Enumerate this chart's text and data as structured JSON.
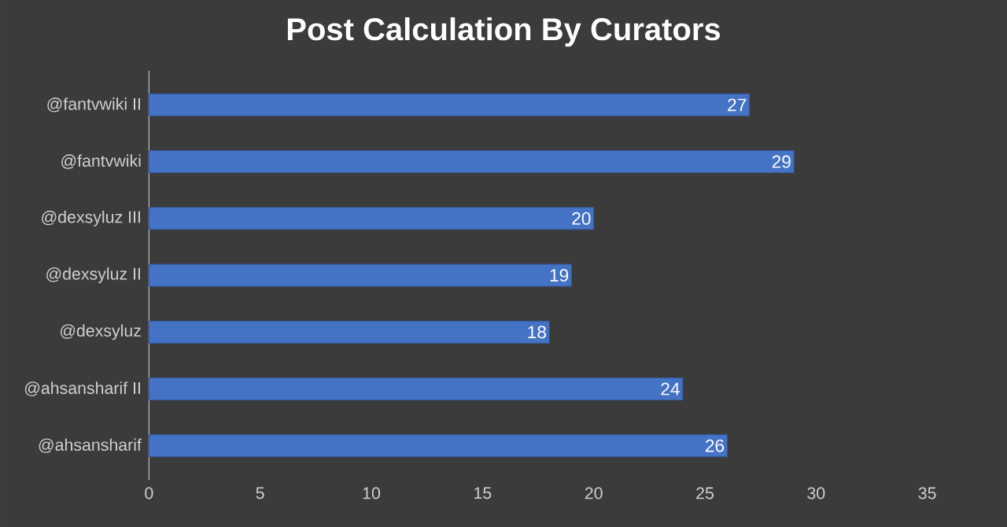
{
  "chart_data": {
    "type": "bar",
    "title": "Post Calculation By Curators",
    "orientation": "horizontal",
    "categories": [
      "@fantvwiki II",
      "@fantvwiki",
      "@dexsyluz III",
      "@dexsyluz II",
      "@dexsyluz",
      "@ahsansharif II",
      "@ahsansharif"
    ],
    "values": [
      27,
      29,
      20,
      19,
      18,
      24,
      26
    ],
    "color": "#4472c4",
    "xlim": [
      0,
      35
    ],
    "xticks": [
      0,
      5,
      10,
      15,
      20,
      25,
      30,
      35
    ],
    "data_labels": true
  }
}
